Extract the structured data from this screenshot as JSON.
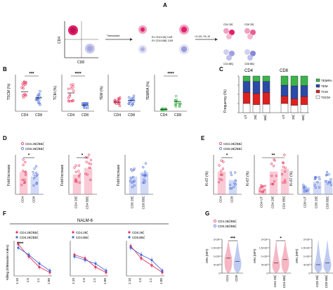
{
  "figure": {
    "panels": [
      "A",
      "B",
      "C",
      "D",
      "E",
      "F",
      "G"
    ]
  },
  "panel_a": {
    "axis_y": "CD4",
    "axis_x": "CD8",
    "step1_label": "Transduced",
    "car_line1": "EV CD19.28ζ CAR",
    "car_line2": "EV CD19.BBζ CAR",
    "step2_label": "+IL-2/IL-7/IL-15",
    "result_labels": [
      "CD4 28ζ",
      "CD8 28ζ",
      "CD4 BBζ",
      "CD8 BBζ"
    ]
  },
  "panel_b": {
    "x_groups": [
      "CD4",
      "CD8"
    ],
    "subplots": [
      {
        "ylabel": "TSCM (%)",
        "sig": "***"
      },
      {
        "ylabel": "TCM (%)",
        "sig": "****"
      },
      {
        "ylabel": "TEM (%)",
        "sig": ""
      },
      {
        "ylabel": "TEMRA (%)",
        "sig": "****"
      }
    ]
  },
  "panel_c": {
    "titles": [
      "CD4",
      "CD8"
    ],
    "ylabel": "Frequency (%)",
    "x_groups": [
      "UT",
      "28ζ",
      "BBζ"
    ],
    "legend": [
      "TEMRA",
      "TEM",
      "TCM",
      "TSCM"
    ],
    "colors": [
      "#3cb44b",
      "#2a4aa8",
      "#e02020",
      "#ffffff"
    ]
  },
  "panel_d": {
    "legend": [
      "CD4.28ζ/BBζ",
      "CD8.28ζ/BBζ"
    ],
    "subplots": [
      {
        "ylabel": "Fold Increase",
        "sig": "*",
        "xlabels": [
          "CD4",
          "CD8"
        ]
      },
      {
        "ylabel": "Fold Increase",
        "sig": "*",
        "xlabels": [
          "CD4 28ζ",
          "CD4 BBζ"
        ]
      },
      {
        "ylabel": "Fold Increase",
        "sig": "",
        "xlabels": [
          "CD8 28ζ",
          "CD8 BBζ"
        ]
      }
    ]
  },
  "panel_e": {
    "legend": [
      "CD4.28ζ/BBζ",
      "CD8.28ζ/BBζ"
    ],
    "subplots": [
      {
        "ylabel": "Ki-67 (%)",
        "sig": "*",
        "xlabels": [
          "CD4",
          "CD8"
        ]
      },
      {
        "ylabel": "Ki-67 (%)",
        "sig": "**",
        "xlabels": [
          "CD4 UT",
          "CD4 28ζ",
          "CD4 BBζ"
        ]
      },
      {
        "ylabel": "Ki-67 (%)",
        "sig": "",
        "xlabels": [
          "CD8 UT",
          "CD8 28ζ",
          "CD8 BBζ"
        ]
      }
    ]
  },
  "panel_f": {
    "title": "NALM-6",
    "ylabel": "Killing (Elimination Index)",
    "xlabels": [
      "1:10",
      "1:5",
      "1:1",
      "1:80"
    ],
    "legends": [
      [
        "CD4.28ζ/BBζ",
        "CD8.28ζ/BBζ"
      ],
      [
        "CD4.28ζ",
        "CD4.BBζ"
      ],
      [
        "CD8.28ζ",
        "CD8.BBζ"
      ]
    ],
    "sig": "****"
  },
  "panel_g": {
    "legend": [
      "CD4.28ζ/BBζ",
      "CD8.28ζ/BBζ"
    ],
    "ylabel": "ARs (MFI)",
    "subplots": [
      {
        "sig": "***",
        "xlabels": [
          "CD4",
          "CD8"
        ],
        "ticks": [
          "2×10⁴",
          "1.5×10⁴",
          "1×10⁴",
          "5×10³",
          "0"
        ]
      },
      {
        "sig": "*",
        "xlabels": [
          "CD4 28ζ",
          "CD4 BBζ"
        ],
        "ticks": [
          "2×10⁴",
          "1.5×10⁴",
          "1×10⁴",
          "5×10³",
          "0"
        ]
      },
      {
        "sig": "",
        "xlabels": [
          "CD8 28ζ",
          "CD8 BBζ"
        ],
        "ticks": [
          "2×10⁴",
          "1.5×10⁴",
          "1×10⁴",
          "5×10³",
          "0"
        ]
      }
    ]
  },
  "chart_data": [
    {
      "type": "scatter",
      "panel": "B1",
      "categories": [
        "CD4",
        "CD8"
      ],
      "series": [
        {
          "values": [
            32,
            22
          ]
        }
      ]
    },
    {
      "type": "scatter",
      "panel": "B2",
      "categories": [
        "CD4",
        "CD8"
      ],
      "series": [
        {
          "values": [
            30,
            10
          ]
        }
      ]
    },
    {
      "type": "scatter",
      "panel": "B3",
      "categories": [
        "CD4",
        "CD8"
      ],
      "series": [
        {
          "values": [
            15,
            18
          ]
        }
      ]
    },
    {
      "type": "scatter",
      "panel": "B4",
      "categories": [
        "CD4",
        "CD8"
      ],
      "series": [
        {
          "values": [
            3,
            16
          ]
        }
      ]
    },
    {
      "type": "bar",
      "panel": "C",
      "categories": [
        "UT",
        "28ζ",
        "BBζ",
        "UT",
        "28ζ",
        "BBζ"
      ],
      "series": [
        {
          "name": "TSCM",
          "values": [
            25,
            22,
            23,
            25,
            20,
            22
          ]
        },
        {
          "name": "TCM",
          "values": [
            30,
            30,
            32,
            20,
            18,
            22
          ]
        },
        {
          "name": "TEM",
          "values": [
            30,
            33,
            30,
            30,
            35,
            30
          ]
        },
        {
          "name": "TEMRA",
          "values": [
            15,
            15,
            15,
            25,
            27,
            26
          ]
        }
      ],
      "ylim": [
        0,
        100
      ]
    },
    {
      "type": "bar",
      "panel": "D1",
      "categories": [
        "CD4",
        "CD8"
      ],
      "values": [
        1.0,
        0.8
      ]
    },
    {
      "type": "bar",
      "panel": "D2",
      "categories": [
        "CD4 28ζ",
        "CD4 BBζ"
      ],
      "values": [
        0.9,
        1.2
      ]
    },
    {
      "type": "bar",
      "panel": "D3",
      "categories": [
        "CD8 28ζ",
        "CD8 BBζ"
      ],
      "values": [
        0.8,
        1.0
      ]
    },
    {
      "type": "bar",
      "panel": "E1",
      "categories": [
        "CD4",
        "CD8"
      ],
      "values": [
        40,
        25
      ]
    },
    {
      "type": "bar",
      "panel": "E2",
      "categories": [
        "CD4 UT",
        "CD4 28ζ",
        "CD4 BBζ"
      ],
      "values": [
        10,
        40,
        45
      ]
    },
    {
      "type": "bar",
      "panel": "E3",
      "categories": [
        "CD8 UT",
        "CD8 28ζ",
        "CD8 BBζ"
      ],
      "values": [
        12,
        22,
        25
      ]
    },
    {
      "type": "line",
      "panel": "F1",
      "x": [
        "1:10",
        "1:5",
        "1:1",
        "1:80"
      ],
      "series": [
        {
          "values": [
            0.9,
            0.55,
            0.25,
            0.1
          ]
        },
        {
          "values": [
            0.8,
            0.6,
            0.35,
            0.15
          ]
        }
      ]
    },
    {
      "type": "line",
      "panel": "F2",
      "x": [
        "1:10",
        "1:5",
        "1:1",
        "1:80"
      ],
      "series": [
        {
          "values": [
            0.6,
            0.5,
            0.25,
            0.1
          ]
        },
        {
          "values": [
            0.55,
            0.45,
            0.35,
            0.15
          ]
        }
      ]
    },
    {
      "type": "line",
      "panel": "F3",
      "x": [
        "1:10",
        "1:5",
        "1:1",
        "1:80"
      ],
      "series": [
        {
          "values": [
            0.85,
            0.5,
            0.3,
            0.1
          ]
        },
        {
          "values": [
            0.8,
            0.6,
            0.45,
            0.15
          ]
        }
      ]
    },
    {
      "type": "violin",
      "panel": "G1",
      "categories": [
        "CD4",
        "CD8"
      ],
      "values": [
        9000,
        7000
      ],
      "ylim": [
        0,
        20000
      ]
    },
    {
      "type": "violin",
      "panel": "G2",
      "categories": [
        "CD4 28ζ",
        "CD4 BBζ"
      ],
      "values": [
        6000,
        8000
      ],
      "ylim": [
        0,
        20000
      ]
    },
    {
      "type": "violin",
      "panel": "G3",
      "categories": [
        "CD8 28ζ",
        "CD8 BBζ"
      ],
      "values": [
        5000,
        6000
      ],
      "ylim": [
        0,
        20000
      ]
    }
  ]
}
